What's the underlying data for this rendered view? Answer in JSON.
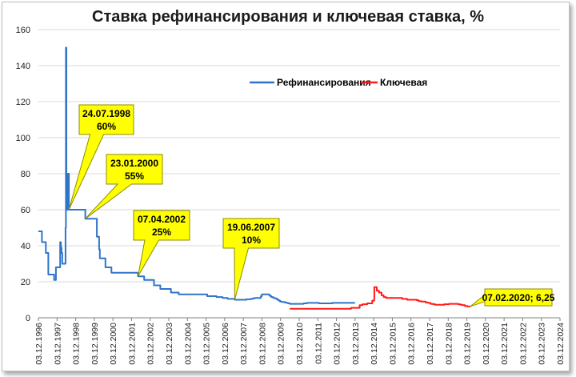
{
  "chart_data": {
    "type": "line",
    "title": "Ставка рефинансирования и ключевая ставка, %",
    "xlabel": "",
    "ylabel": "",
    "ylim": [
      0,
      160
    ],
    "yticks": [
      0,
      20,
      40,
      60,
      80,
      100,
      120,
      140,
      160
    ],
    "xlim": [
      "1996-12-03",
      "2024-12-03"
    ],
    "xtick_labels": [
      "03.12.1996",
      "03.12.1997",
      "03.12.1998",
      "03.12.1999",
      "03.12.2000",
      "03.12.2001",
      "03.12.2002",
      "03.12.2003",
      "03.12.2004",
      "03.12.2005",
      "03.12.2006",
      "03.12.2007",
      "03.12.2008",
      "03.12.2009",
      "03.12.2010",
      "03.12.2011",
      "03.12.2012",
      "03.12.2013",
      "03.12.2014",
      "03.12.2015",
      "03.12.2016",
      "03.12.2017",
      "03.12.2018",
      "03.12.2019",
      "03.12.2020",
      "03.12.2021",
      "03.12.2022",
      "03.12.2023",
      "03.12.2024"
    ],
    "grid": "horizontal",
    "legend_position": "top-center",
    "series": [
      {
        "name": "Рефинансирования",
        "color": "#2e75c9",
        "step": true,
        "points": [
          [
            "1996-12-03",
            48
          ],
          [
            "1997-02-10",
            42
          ],
          [
            "1997-04-28",
            36
          ],
          [
            "1997-06-16",
            24
          ],
          [
            "1997-10-06",
            21
          ],
          [
            "1997-11-11",
            28
          ],
          [
            "1998-02-02",
            42
          ],
          [
            "1998-02-17",
            39
          ],
          [
            "1998-03-02",
            36
          ],
          [
            "1998-03-16",
            30
          ],
          [
            "1998-05-19",
            50
          ],
          [
            "1998-05-27",
            150
          ],
          [
            "1998-06-05",
            60
          ],
          [
            "1998-06-29",
            80
          ],
          [
            "1998-07-24",
            60
          ],
          [
            "1999-06-10",
            55
          ],
          [
            "2000-01-24",
            45
          ],
          [
            "2000-03-07",
            38
          ],
          [
            "2000-03-21",
            33
          ],
          [
            "2000-07-10",
            28
          ],
          [
            "2000-11-04",
            25
          ],
          [
            "2002-04-09",
            23
          ],
          [
            "2002-08-07",
            21
          ],
          [
            "2003-02-17",
            18
          ],
          [
            "2003-06-21",
            16
          ],
          [
            "2004-01-15",
            14
          ],
          [
            "2004-06-15",
            13
          ],
          [
            "2005-12-26",
            12
          ],
          [
            "2006-06-26",
            11.5
          ],
          [
            "2006-10-23",
            11
          ],
          [
            "2007-01-29",
            10.5
          ],
          [
            "2007-06-19",
            10
          ],
          [
            "2008-02-04",
            10.25
          ],
          [
            "2008-04-29",
            10.5
          ],
          [
            "2008-06-10",
            10.75
          ],
          [
            "2008-07-14",
            11
          ],
          [
            "2008-11-12",
            12
          ],
          [
            "2008-12-01",
            13
          ],
          [
            "2009-04-24",
            12.5
          ],
          [
            "2009-05-14",
            12
          ],
          [
            "2009-06-05",
            11.5
          ],
          [
            "2009-07-13",
            11
          ],
          [
            "2009-08-10",
            10.75
          ],
          [
            "2009-09-15",
            10.5
          ],
          [
            "2009-09-30",
            10
          ],
          [
            "2009-10-30",
            9.5
          ],
          [
            "2009-11-25",
            9
          ],
          [
            "2009-12-28",
            8.75
          ],
          [
            "2010-02-24",
            8.5
          ],
          [
            "2010-03-29",
            8.25
          ],
          [
            "2010-04-30",
            8
          ],
          [
            "2010-06-01",
            7.75
          ],
          [
            "2011-02-28",
            8
          ],
          [
            "2011-05-03",
            8.25
          ],
          [
            "2011-12-26",
            8
          ],
          [
            "2012-09-14",
            8.25
          ],
          [
            "2013-12-03",
            8.25
          ]
        ]
      },
      {
        "name": "Ключевая",
        "color": "#ff1a1a",
        "step": true,
        "points": [
          [
            "2010-06-01",
            5.0
          ],
          [
            "2013-09-13",
            5.5
          ],
          [
            "2014-03-03",
            7
          ],
          [
            "2014-04-28",
            7.5
          ],
          [
            "2014-07-28",
            8
          ],
          [
            "2014-11-05",
            9.5
          ],
          [
            "2014-12-12",
            10.5
          ],
          [
            "2014-12-16",
            17
          ],
          [
            "2015-02-02",
            15
          ],
          [
            "2015-03-16",
            14
          ],
          [
            "2015-05-05",
            12.5
          ],
          [
            "2015-06-16",
            11.5
          ],
          [
            "2015-08-03",
            11
          ],
          [
            "2016-06-14",
            10.5
          ],
          [
            "2016-09-19",
            10
          ],
          [
            "2017-03-27",
            9.75
          ],
          [
            "2017-05-02",
            9.25
          ],
          [
            "2017-06-19",
            9
          ],
          [
            "2017-09-18",
            8.5
          ],
          [
            "2017-10-30",
            8.25
          ],
          [
            "2017-12-18",
            7.75
          ],
          [
            "2018-02-12",
            7.5
          ],
          [
            "2018-03-26",
            7.25
          ],
          [
            "2018-09-17",
            7.5
          ],
          [
            "2018-12-17",
            7.75
          ],
          [
            "2019-06-17",
            7.5
          ],
          [
            "2019-07-29",
            7.25
          ],
          [
            "2019-09-09",
            7
          ],
          [
            "2019-10-28",
            6.5
          ],
          [
            "2019-12-16",
            6.25
          ],
          [
            "2020-02-07",
            6.25
          ]
        ]
      }
    ],
    "annotations": [
      {
        "line1": "24.07.1998",
        "line2": "60%",
        "anchor": [
          "1998-07-24",
          60
        ]
      },
      {
        "line1": "23.01.2000",
        "line2": "55%",
        "anchor": [
          "1999-06-10",
          55
        ]
      },
      {
        "line1": "07.04.2002",
        "line2": "25%",
        "anchor": [
          "2002-04-09",
          23
        ]
      },
      {
        "line1": "19.06.2007",
        "line2": "10%",
        "anchor": [
          "2007-06-19",
          10
        ]
      },
      {
        "line1": "07.02.2020;  6,25",
        "line2": "",
        "anchor": [
          "2020-02-07",
          6.25
        ]
      }
    ]
  },
  "colors": {
    "callout_fill": "#ffff00",
    "callout_stroke": "#8c8c00",
    "grid": "#d9d9d9",
    "axis": "#7f7f7f"
  }
}
